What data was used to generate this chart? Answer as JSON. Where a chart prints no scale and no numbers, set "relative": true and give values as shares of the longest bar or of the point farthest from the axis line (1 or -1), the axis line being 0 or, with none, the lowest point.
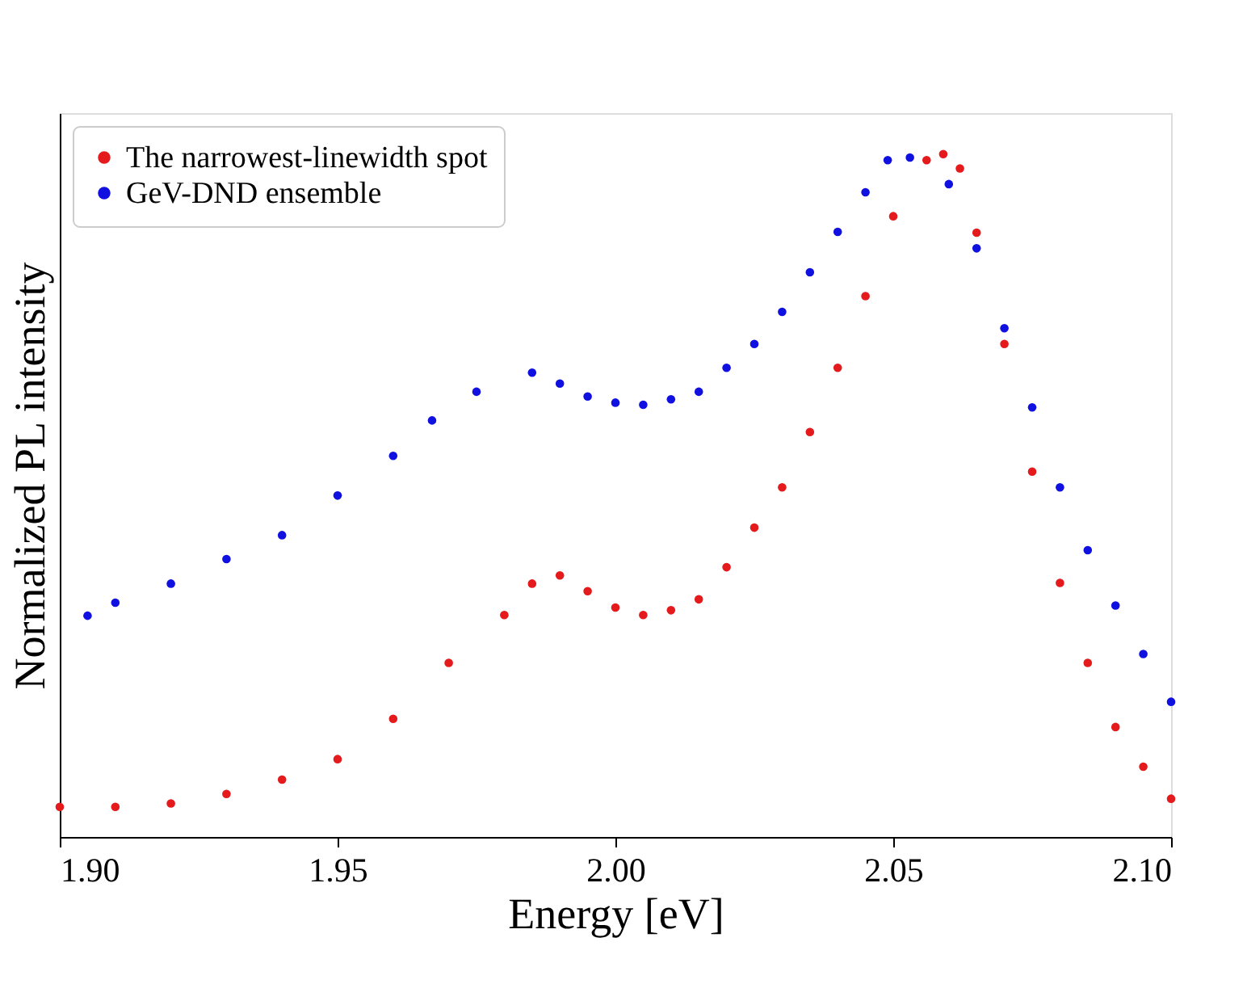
{
  "chart_data": {
    "type": "scatter",
    "xlabel": "Energy [eV]",
    "ylabel": "Normalized PL intensity",
    "relative": true,
    "marker": "circle",
    "grid": false,
    "legend": "top left",
    "xlim": [
      1.9,
      2.1
    ],
    "xticks": [
      {
        "value": 1.9,
        "label": "1.90"
      },
      1.95,
      {
        "value": 2.0,
        "label": "2.00"
      },
      2.05,
      {
        "value": 2.1,
        "label": "2.10"
      }
    ],
    "series": [
      {
        "name": "The narrowest-linewidth spot",
        "color": "#e41a1c",
        "x": [
          1.9,
          1.91,
          1.92,
          1.93,
          1.94,
          1.95,
          1.96,
          1.97,
          1.98,
          1.985,
          1.99,
          1.995,
          2.0,
          2.005,
          2.01,
          2.015,
          2.02,
          2.025,
          2.03,
          2.035,
          2.04,
          2.045,
          2.05,
          2.056,
          2.059,
          2.062,
          2.065,
          2.07,
          2.075,
          2.08,
          2.085,
          2.09,
          2.095,
          2.1
        ],
        "values": [
          0.044,
          0.044,
          0.049,
          0.063,
          0.084,
          0.114,
          0.173,
          0.255,
          0.325,
          0.371,
          0.383,
          0.36,
          0.336,
          0.325,
          0.332,
          0.348,
          0.395,
          0.453,
          0.512,
          0.593,
          0.687,
          0.792,
          0.909,
          0.991,
          1.0,
          0.979,
          0.885,
          0.722,
          0.535,
          0.372,
          0.255,
          0.161,
          0.103,
          0.056
        ]
      },
      {
        "name": "GeV-DND ensemble",
        "color": "#1010e0",
        "x": [
          1.905,
          1.91,
          1.92,
          1.93,
          1.94,
          1.95,
          1.96,
          1.967,
          1.975,
          1.985,
          1.99,
          1.995,
          2.0,
          2.005,
          2.01,
          2.015,
          2.02,
          2.025,
          2.03,
          2.035,
          2.04,
          2.045,
          2.049,
          2.053,
          2.06,
          2.065,
          2.07,
          2.075,
          2.08,
          2.085,
          2.09,
          2.095,
          2.1
        ],
        "values": [
          0.324,
          0.343,
          0.371,
          0.407,
          0.442,
          0.5,
          0.558,
          0.61,
          0.652,
          0.68,
          0.664,
          0.645,
          0.636,
          0.633,
          0.641,
          0.652,
          0.687,
          0.722,
          0.769,
          0.827,
          0.886,
          0.944,
          0.991,
          0.995,
          0.956,
          0.862,
          0.745,
          0.629,
          0.512,
          0.42,
          0.339,
          0.268,
          0.198
        ]
      }
    ]
  }
}
